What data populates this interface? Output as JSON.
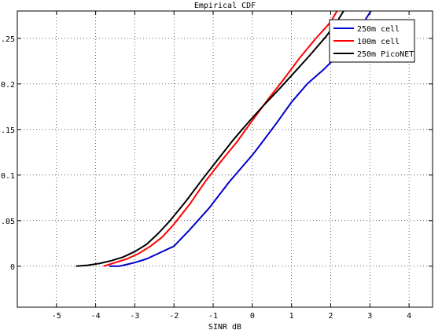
{
  "chart_data": {
    "type": "line",
    "title": "Empirical CDF",
    "xlabel": "SINR dB",
    "ylabel": "",
    "xlim": [
      -6,
      4.6
    ],
    "ylim": [
      -0.045,
      0.28
    ],
    "xticks": [
      -5,
      -4,
      -3,
      -2,
      -1,
      0,
      1,
      2,
      3,
      4
    ],
    "xtick_labels": [
      "-5",
      "-4",
      "-3",
      "-2",
      "-1",
      "0",
      "1",
      "2",
      "3",
      "4"
    ],
    "yticks": [
      0,
      0.05,
      0.1,
      0.15,
      0.2,
      0.25
    ],
    "ytick_labels": [
      "0",
      ".05",
      "0.1",
      ".15",
      "0.2",
      ".25"
    ],
    "grid": true,
    "legend_position": "top-right",
    "series": [
      {
        "name": "250m cell",
        "color": "#0000cc",
        "x": [
          -3.65,
          -3.4,
          -3.2,
          -3.0,
          -2.7,
          -2.4,
          -2.0,
          -1.6,
          -1.1,
          -0.6,
          -0.2,
          0.0,
          0.2,
          0.6,
          1.0,
          1.4,
          1.8,
          2.2,
          2.6,
          2.85,
          3.1
        ],
        "y": [
          0.0,
          0.0,
          0.002,
          0.004,
          0.008,
          0.014,
          0.022,
          0.04,
          0.064,
          0.092,
          0.112,
          0.122,
          0.133,
          0.156,
          0.18,
          0.2,
          0.215,
          0.232,
          0.25,
          0.268,
          0.285
        ]
      },
      {
        "name": "100m cell",
        "color": "#ff0000",
        "x": [
          -3.8,
          -3.5,
          -3.2,
          -2.9,
          -2.6,
          -2.3,
          -2.0,
          -1.6,
          -1.2,
          -0.8,
          -0.4,
          0.0,
          0.4,
          0.8,
          1.2,
          1.6,
          2.0,
          2.2
        ],
        "y": [
          0.0,
          0.004,
          0.008,
          0.014,
          0.022,
          0.032,
          0.046,
          0.068,
          0.093,
          0.115,
          0.136,
          0.16,
          0.183,
          0.205,
          0.228,
          0.249,
          0.268,
          0.283
        ]
      },
      {
        "name": "250m PicoNET",
        "color": "#000000",
        "x": [
          -4.5,
          -4.2,
          -3.9,
          -3.6,
          -3.3,
          -3.0,
          -2.7,
          -2.4,
          -2.1,
          -1.7,
          -1.3,
          -0.9,
          -0.5,
          -0.1,
          0.3,
          0.7,
          1.1,
          1.5,
          1.9,
          2.2,
          2.4
        ],
        "y": [
          0.0,
          0.001,
          0.003,
          0.006,
          0.01,
          0.016,
          0.024,
          0.036,
          0.05,
          0.071,
          0.094,
          0.116,
          0.138,
          0.158,
          0.177,
          0.195,
          0.214,
          0.233,
          0.253,
          0.271,
          0.285
        ]
      }
    ]
  }
}
